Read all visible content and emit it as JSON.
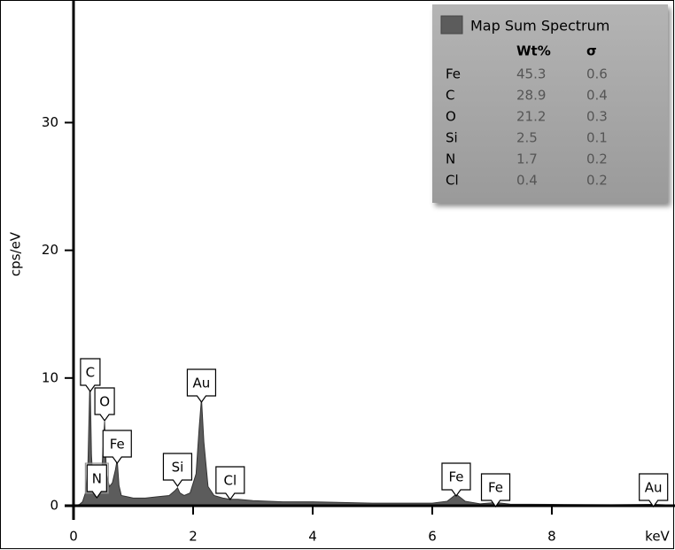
{
  "chart_data": {
    "type": "area",
    "xlabel": "keV",
    "ylabel": "cps/eV",
    "xlim": [
      0,
      10.06
    ],
    "ylim": [
      0,
      39.6
    ],
    "xticks": [
      0,
      2,
      4,
      6,
      8
    ],
    "yticks": [
      0,
      10,
      20,
      30
    ],
    "color": "#5c5c5c",
    "x": [
      0,
      0.1,
      0.15,
      0.2,
      0.24,
      0.27,
      0.28,
      0.3,
      0.33,
      0.36,
      0.39,
      0.42,
      0.46,
      0.5,
      0.52,
      0.55,
      0.6,
      0.65,
      0.7,
      0.73,
      0.76,
      0.8,
      0.9,
      1.0,
      1.2,
      1.4,
      1.6,
      1.7,
      1.74,
      1.78,
      1.85,
      1.95,
      2.05,
      2.1,
      2.14,
      2.18,
      2.25,
      2.35,
      2.5,
      2.62,
      2.75,
      3.0,
      3.5,
      4.0,
      4.5,
      5.0,
      5.5,
      6.0,
      6.25,
      6.4,
      6.55,
      6.8,
      7.06,
      7.3,
      8.0,
      9.0,
      9.7,
      10.0
    ],
    "values": [
      0,
      0.1,
      0.3,
      1.0,
      3.0,
      9.0,
      9.2,
      4.0,
      1.2,
      0.8,
      1.3,
      0.8,
      1.5,
      5.0,
      6.6,
      2.5,
      1.5,
      1.8,
      2.8,
      3.6,
      1.6,
      0.8,
      0.7,
      0.6,
      0.6,
      0.7,
      0.8,
      1.2,
      1.4,
      1.0,
      0.8,
      1.0,
      2.5,
      6.0,
      8.4,
      5.0,
      1.5,
      0.8,
      0.6,
      0.5,
      0.5,
      0.4,
      0.3,
      0.3,
      0.25,
      0.2,
      0.2,
      0.2,
      0.35,
      0.9,
      0.35,
      0.15,
      0.25,
      0.12,
      0.1,
      0.08,
      0.1,
      0.05
    ],
    "annotations": [
      {
        "text": "C",
        "x": 0.28
      },
      {
        "text": "O",
        "x": 0.52
      },
      {
        "text": "Fe",
        "x": 0.73
      },
      {
        "text": "N",
        "x": 0.39
      },
      {
        "text": "Si",
        "x": 1.74
      },
      {
        "text": "Au",
        "x": 2.14
      },
      {
        "text": "Cl",
        "x": 2.62
      },
      {
        "text": "Fe",
        "x": 6.4
      },
      {
        "text": "Fe",
        "x": 7.06
      },
      {
        "text": "Au",
        "x": 9.7
      }
    ],
    "legend": {
      "title": "Map Sum Spectrum",
      "columns": [
        "Wt%",
        "σ"
      ],
      "rows": [
        [
          "Fe",
          45.3,
          0.6
        ],
        [
          "C",
          28.9,
          0.4
        ],
        [
          "O",
          21.2,
          0.3
        ],
        [
          "Si",
          2.5,
          0.1
        ],
        [
          "N",
          1.7,
          0.2
        ],
        [
          "Cl",
          0.4,
          0.2
        ]
      ]
    }
  }
}
